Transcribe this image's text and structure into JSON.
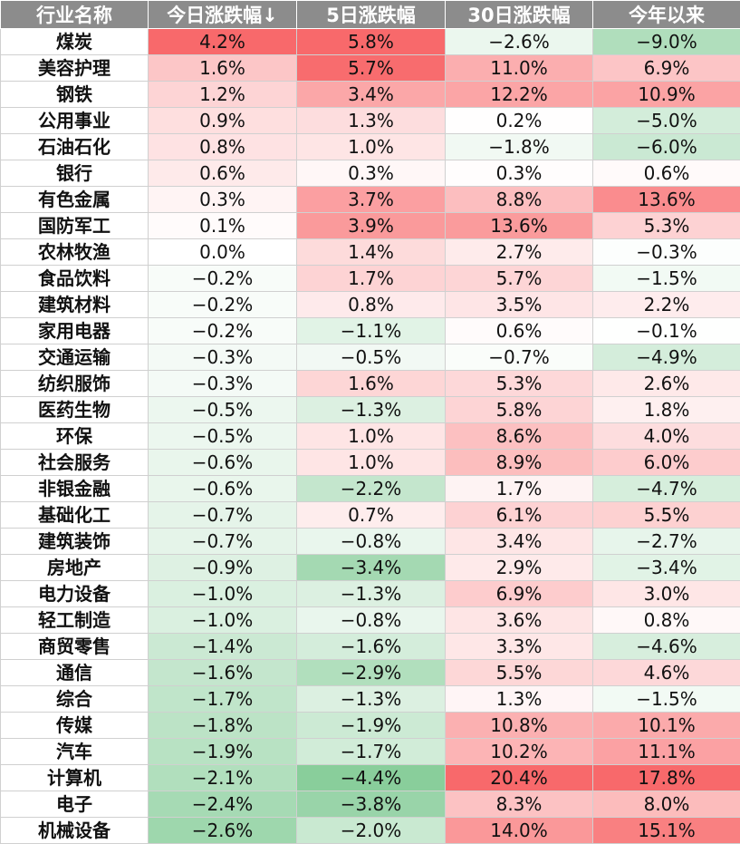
{
  "colors": {
    "header_bg": "#8c8c8c",
    "header_text": "#ffffff",
    "positive": "#f8696b",
    "negative": "#63be7b",
    "neutral": "#ffffff"
  },
  "chart_data": {
    "type": "table",
    "columns": [
      "行业名称",
      "今日涨跌幅↓",
      "5日涨跌幅",
      "30日涨跌幅",
      "今年以来"
    ],
    "rows": [
      {
        "name": "煤炭",
        "values": [
          "4.2%",
          "5.8%",
          "−2.6%",
          "−9.0%"
        ],
        "nums": [
          4.2,
          5.8,
          -2.6,
          -9.0
        ]
      },
      {
        "name": "美容护理",
        "values": [
          "1.6%",
          "5.7%",
          "11.0%",
          "6.9%"
        ],
        "nums": [
          1.6,
          5.7,
          11.0,
          6.9
        ]
      },
      {
        "name": "钢铁",
        "values": [
          "1.2%",
          "3.4%",
          "12.2%",
          "10.9%"
        ],
        "nums": [
          1.2,
          3.4,
          12.2,
          10.9
        ]
      },
      {
        "name": "公用事业",
        "values": [
          "0.9%",
          "1.3%",
          "0.2%",
          "−5.0%"
        ],
        "nums": [
          0.9,
          1.3,
          0.2,
          -5.0
        ]
      },
      {
        "name": "石油石化",
        "values": [
          "0.8%",
          "1.0%",
          "−1.8%",
          "−6.0%"
        ],
        "nums": [
          0.8,
          1.0,
          -1.8,
          -6.0
        ]
      },
      {
        "name": "银行",
        "values": [
          "0.6%",
          "0.3%",
          "0.3%",
          "0.6%"
        ],
        "nums": [
          0.6,
          0.3,
          0.3,
          0.6
        ]
      },
      {
        "name": "有色金属",
        "values": [
          "0.3%",
          "3.7%",
          "8.8%",
          "13.6%"
        ],
        "nums": [
          0.3,
          3.7,
          8.8,
          13.6
        ]
      },
      {
        "name": "国防军工",
        "values": [
          "0.1%",
          "3.9%",
          "13.6%",
          "5.3%"
        ],
        "nums": [
          0.1,
          3.9,
          13.6,
          5.3
        ]
      },
      {
        "name": "农林牧渔",
        "values": [
          "0.0%",
          "1.4%",
          "2.7%",
          "−0.3%"
        ],
        "nums": [
          0.0,
          1.4,
          2.7,
          -0.3
        ]
      },
      {
        "name": "食品饮料",
        "values": [
          "−0.2%",
          "1.7%",
          "5.7%",
          "−1.5%"
        ],
        "nums": [
          -0.2,
          1.7,
          5.7,
          -1.5
        ]
      },
      {
        "name": "建筑材料",
        "values": [
          "−0.2%",
          "0.8%",
          "3.5%",
          "2.2%"
        ],
        "nums": [
          -0.2,
          0.8,
          3.5,
          2.2
        ]
      },
      {
        "name": "家用电器",
        "values": [
          "−0.2%",
          "−1.1%",
          "0.6%",
          "−0.1%"
        ],
        "nums": [
          -0.2,
          -1.1,
          0.6,
          -0.1
        ]
      },
      {
        "name": "交通运输",
        "values": [
          "−0.3%",
          "−0.5%",
          "−0.7%",
          "−4.9%"
        ],
        "nums": [
          -0.3,
          -0.5,
          -0.7,
          -4.9
        ]
      },
      {
        "name": "纺织服饰",
        "values": [
          "−0.3%",
          "1.6%",
          "5.3%",
          "2.6%"
        ],
        "nums": [
          -0.3,
          1.6,
          5.3,
          2.6
        ]
      },
      {
        "name": "医药生物",
        "values": [
          "−0.5%",
          "−1.3%",
          "5.8%",
          "1.8%"
        ],
        "nums": [
          -0.5,
          -1.3,
          5.8,
          1.8
        ]
      },
      {
        "name": "环保",
        "values": [
          "−0.5%",
          "1.0%",
          "8.6%",
          "4.0%"
        ],
        "nums": [
          -0.5,
          1.0,
          8.6,
          4.0
        ]
      },
      {
        "name": "社会服务",
        "values": [
          "−0.6%",
          "1.0%",
          "8.9%",
          "6.0%"
        ],
        "nums": [
          -0.6,
          1.0,
          8.9,
          6.0
        ]
      },
      {
        "name": "非银金融",
        "values": [
          "−0.6%",
          "−2.2%",
          "1.7%",
          "−4.7%"
        ],
        "nums": [
          -0.6,
          -2.2,
          1.7,
          -4.7
        ]
      },
      {
        "name": "基础化工",
        "values": [
          "−0.7%",
          "0.7%",
          "6.1%",
          "5.5%"
        ],
        "nums": [
          -0.7,
          0.7,
          6.1,
          5.5
        ]
      },
      {
        "name": "建筑装饰",
        "values": [
          "−0.7%",
          "−0.8%",
          "3.4%",
          "−2.7%"
        ],
        "nums": [
          -0.7,
          -0.8,
          3.4,
          -2.7
        ]
      },
      {
        "name": "房地产",
        "values": [
          "−0.9%",
          "−3.4%",
          "2.9%",
          "−3.4%"
        ],
        "nums": [
          -0.9,
          -3.4,
          2.9,
          -3.4
        ]
      },
      {
        "name": "电力设备",
        "values": [
          "−1.0%",
          "−1.3%",
          "6.9%",
          "3.0%"
        ],
        "nums": [
          -1.0,
          -1.3,
          6.9,
          3.0
        ]
      },
      {
        "name": "轻工制造",
        "values": [
          "−1.0%",
          "−0.8%",
          "3.6%",
          "0.8%"
        ],
        "nums": [
          -1.0,
          -0.8,
          3.6,
          0.8
        ]
      },
      {
        "name": "商贸零售",
        "values": [
          "−1.4%",
          "−1.6%",
          "3.3%",
          "−4.6%"
        ],
        "nums": [
          -1.4,
          -1.6,
          3.3,
          -4.6
        ]
      },
      {
        "name": "通信",
        "values": [
          "−1.6%",
          "−2.9%",
          "5.5%",
          "4.6%"
        ],
        "nums": [
          -1.6,
          -2.9,
          5.5,
          4.6
        ]
      },
      {
        "name": "综合",
        "values": [
          "−1.7%",
          "−1.3%",
          "1.3%",
          "−1.5%"
        ],
        "nums": [
          -1.7,
          -1.3,
          1.3,
          -1.5
        ]
      },
      {
        "name": "传媒",
        "values": [
          "−1.8%",
          "−1.9%",
          "10.8%",
          "10.1%"
        ],
        "nums": [
          -1.8,
          -1.9,
          10.8,
          10.1
        ]
      },
      {
        "name": "汽车",
        "values": [
          "−1.9%",
          "−1.7%",
          "10.2%",
          "11.1%"
        ],
        "nums": [
          -1.9,
          -1.7,
          10.2,
          11.1
        ]
      },
      {
        "name": "计算机",
        "values": [
          "−2.1%",
          "−4.4%",
          "20.4%",
          "17.8%"
        ],
        "nums": [
          -2.1,
          -4.4,
          20.4,
          17.8
        ]
      },
      {
        "name": "电子",
        "values": [
          "−2.4%",
          "−3.8%",
          "8.3%",
          "8.0%"
        ],
        "nums": [
          -2.4,
          -3.8,
          8.3,
          8.0
        ]
      },
      {
        "name": "机械设备",
        "values": [
          "−2.6%",
          "−2.0%",
          "14.0%",
          "15.1%"
        ],
        "nums": [
          -2.6,
          -2.0,
          14.0,
          15.1
        ]
      }
    ]
  }
}
